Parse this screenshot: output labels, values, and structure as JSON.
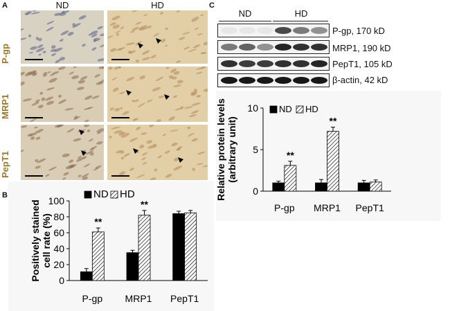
{
  "panel_a": {
    "letter": "A",
    "col_headers": [
      "ND",
      "HD"
    ],
    "row_labels": [
      "P-gp",
      "MRP1",
      "PepT1"
    ]
  },
  "panel_b": {
    "letter": "B"
  },
  "panel_c": {
    "letter": "C",
    "blot_headers": [
      "ND",
      "HD"
    ],
    "blot_labels": [
      "P-gp, 170 kD",
      "MRP1, 190 kD",
      "PepT1, 105 kD",
      "β-actin, 42 kD"
    ]
  },
  "chart_data": [
    {
      "type": "bar",
      "panel": "B",
      "categories": [
        "P-gp",
        "MRP1",
        "PepT1"
      ],
      "series": [
        {
          "name": "ND",
          "values": [
            11,
            35,
            84
          ],
          "errors": [
            4,
            3,
            3
          ]
        },
        {
          "name": "HD",
          "values": [
            61,
            82,
            85
          ],
          "errors": [
            5,
            6,
            3
          ]
        }
      ],
      "significance": [
        "**",
        "**",
        ""
      ],
      "ylabel": "Positively stained cell rate (%)",
      "ylim": [
        0,
        100
      ],
      "yticks": [
        0,
        20,
        40,
        60,
        80,
        100
      ],
      "legend_position": "top",
      "colors": {
        "ND": "#000000",
        "HD": "hatched"
      }
    },
    {
      "type": "bar",
      "panel": "C",
      "categories": [
        "P-gp",
        "MRP1",
        "PepT1"
      ],
      "series": [
        {
          "name": "ND",
          "values": [
            1.0,
            1.0,
            1.0
          ],
          "errors": [
            0.2,
            0.4,
            0.3
          ]
        },
        {
          "name": "HD",
          "values": [
            3.1,
            7.2,
            1.1
          ],
          "errors": [
            0.5,
            0.5,
            0.25
          ]
        }
      ],
      "significance": [
        "**",
        "**",
        ""
      ],
      "ylabel": "Relative protein levels (arbitrary unit)",
      "ylim": [
        0,
        10
      ],
      "yticks": [
        0,
        5,
        10
      ],
      "legend_position": "top-left",
      "colors": {
        "ND": "#000000",
        "HD": "hatched"
      }
    }
  ]
}
